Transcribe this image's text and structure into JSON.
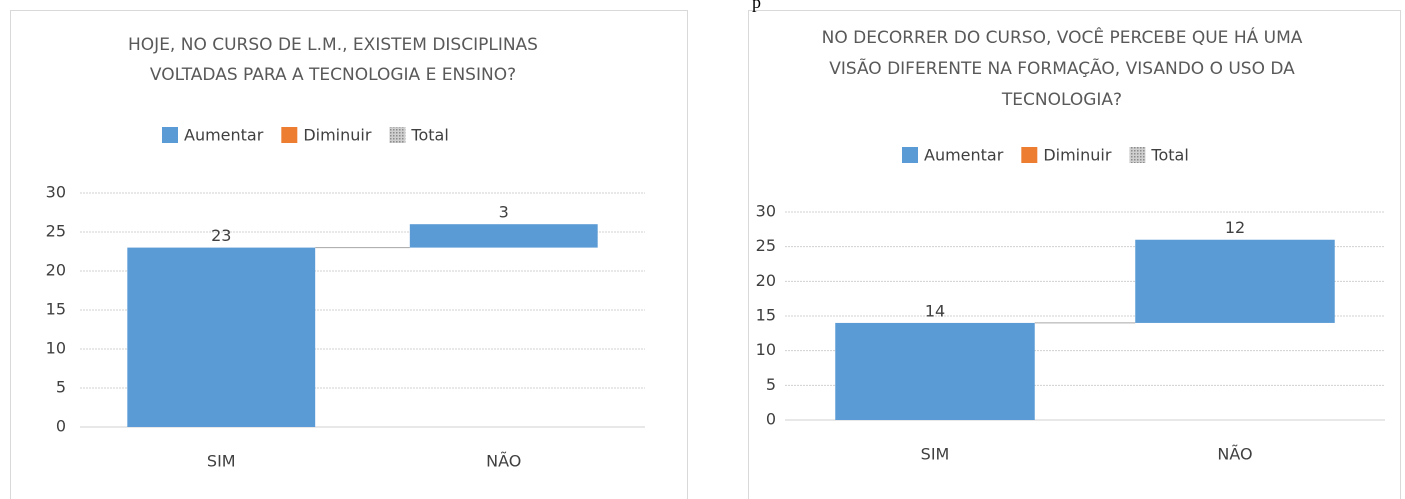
{
  "page_fragment": "p",
  "chart_data": [
    {
      "type": "waterfall",
      "title": [
        "HOJE, NO CURSO DE L.M., EXISTEM DISCIPLINAS",
        "VOLTADAS PARA A TECNOLOGIA E ENSINO?"
      ],
      "legend": [
        {
          "name": "Aumentar",
          "color": "#5b9bd5"
        },
        {
          "name": "Diminuir",
          "color": "#ed7d31"
        },
        {
          "name": "Total",
          "color": "#a5a5a5"
        }
      ],
      "categories": [
        "SIM",
        "NÃO"
      ],
      "values": [
        23,
        3
      ],
      "color": "#5b9bd5",
      "ylim": [
        0,
        30
      ],
      "yticks": [
        0,
        5,
        10,
        15,
        20,
        25,
        30
      ],
      "grid": true
    },
    {
      "type": "waterfall",
      "title": [
        "NO DECORRER DO CURSO, VOCÊ PERCEBE QUE HÁ UMA",
        "VISÃO DIFERENTE NA FORMAÇÃO, VISANDO O USO DA",
        "TECNOLOGIA?"
      ],
      "legend": [
        {
          "name": "Aumentar",
          "color": "#5b9bd5"
        },
        {
          "name": "Diminuir",
          "color": "#ed7d31"
        },
        {
          "name": "Total",
          "color": "#a5a5a5"
        }
      ],
      "categories": [
        "SIM",
        "NÃO"
      ],
      "values": [
        14,
        12
      ],
      "color": "#5b9bd5",
      "ylim": [
        0,
        30
      ],
      "yticks": [
        0,
        5,
        10,
        15,
        20,
        25,
        30
      ],
      "grid": true
    }
  ]
}
